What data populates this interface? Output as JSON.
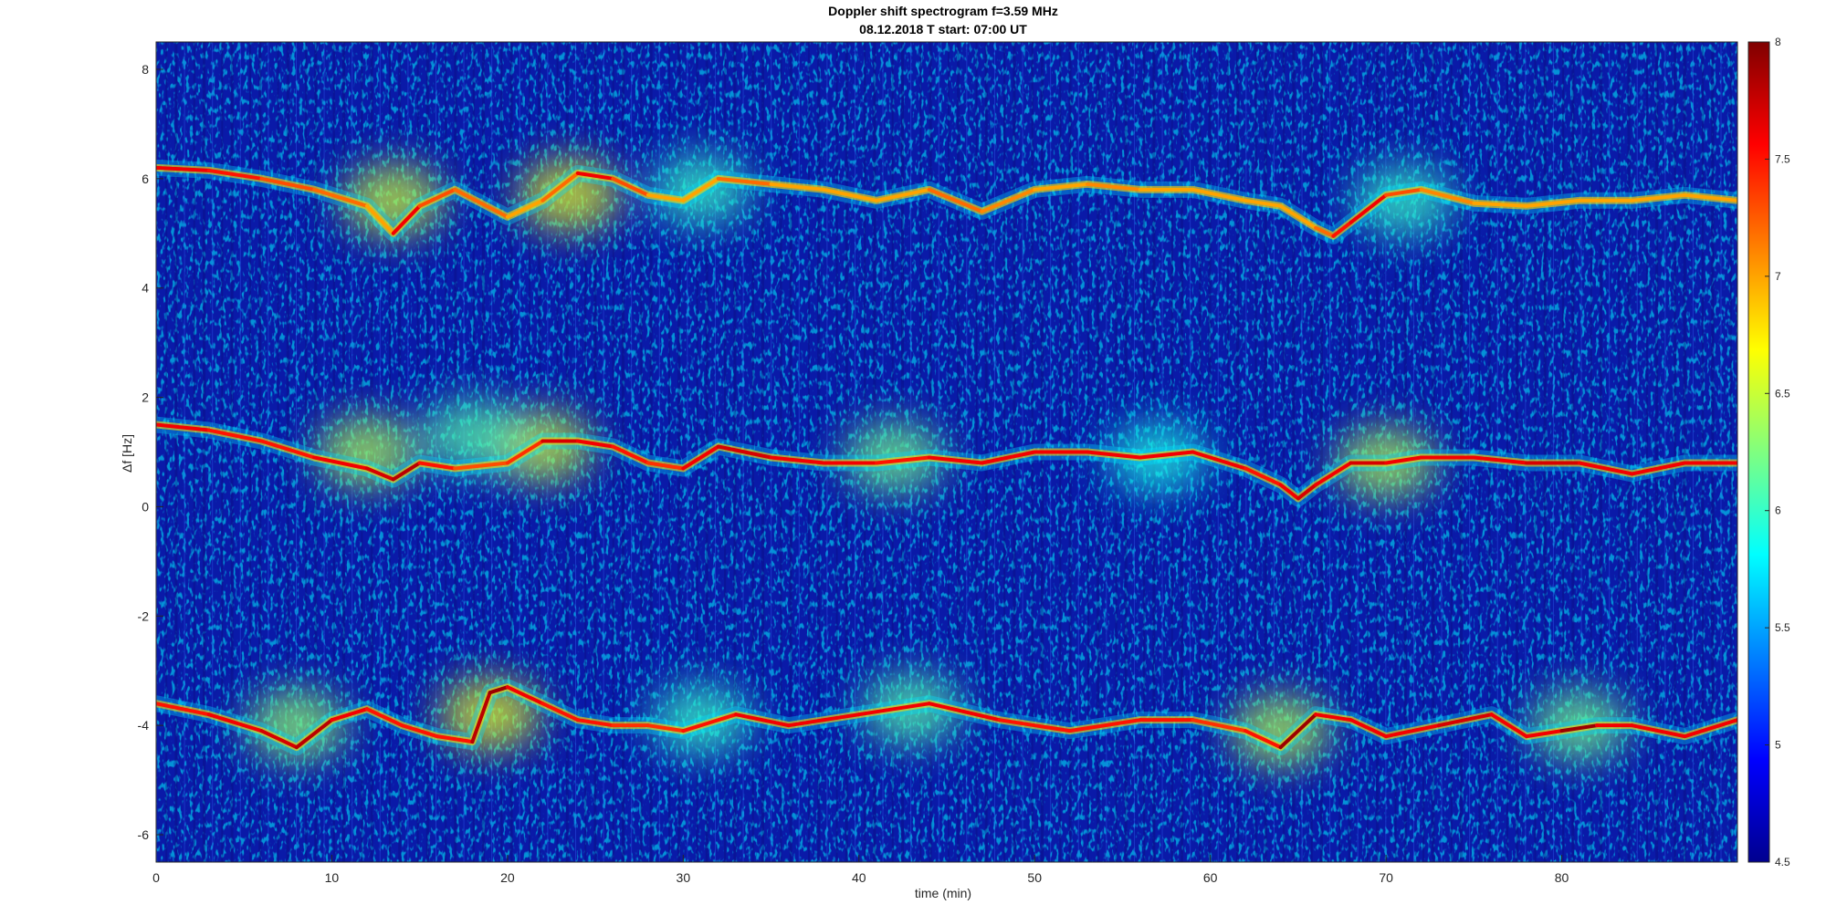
{
  "chart_data": {
    "type": "heatmap",
    "title": "Doppler shift spectrogram f=3.59 MHz",
    "subtitle": "08.12.2018    T start: 07:00 UT",
    "xlabel": "time (min)",
    "ylabel": "Δf [Hz]",
    "xlim": [
      0,
      90
    ],
    "ylim": [
      -6.5,
      8.5
    ],
    "x_ticks": [
      0,
      10,
      20,
      30,
      40,
      50,
      60,
      70,
      80
    ],
    "y_ticks": [
      -6,
      -4,
      -2,
      0,
      2,
      4,
      6,
      8
    ],
    "colorbar": {
      "range": [
        4.5,
        8
      ],
      "ticks": [
        4.5,
        5,
        5.5,
        6,
        6.5,
        7,
        7.5,
        8
      ],
      "colormap": "jet"
    },
    "traces": [
      {
        "x": [
          0,
          3,
          6,
          9,
          12,
          13.5,
          15,
          17,
          20,
          22,
          24,
          26,
          28,
          30,
          32,
          35,
          38,
          41,
          44,
          47,
          50,
          53,
          56,
          59,
          62,
          64,
          66,
          67,
          68,
          70,
          72,
          75,
          78,
          81,
          84,
          87,
          90
        ],
        "y": [
          6.2,
          6.15,
          6.0,
          5.8,
          5.5,
          5.0,
          5.5,
          5.8,
          5.3,
          5.6,
          6.1,
          6.0,
          5.7,
          5.6,
          6.0,
          5.9,
          5.8,
          5.6,
          5.8,
          5.4,
          5.8,
          5.9,
          5.8,
          5.8,
          5.6,
          5.5,
          5.1,
          4.95,
          5.2,
          5.7,
          5.8,
          5.55,
          5.5,
          5.6,
          5.6,
          5.7,
          5.6
        ],
        "intensity": [
          7.6,
          7.5,
          7.3,
          7.2,
          7.0,
          7.6,
          7.3,
          7.2,
          7.0,
          7.2,
          7.6,
          7.3,
          7.0,
          7.0,
          7.2,
          7.0,
          7.0,
          7.0,
          7.2,
          7.1,
          7.0,
          7.1,
          7.0,
          7.0,
          7.0,
          7.0,
          7.2,
          7.5,
          7.6,
          7.3,
          7.1,
          7.0,
          7.0,
          7.0,
          7.0,
          7.0,
          7.0
        ]
      },
      {
        "x": [
          0,
          3,
          6,
          9,
          12,
          13.5,
          15,
          17,
          20,
          22,
          24,
          26,
          28,
          30,
          32,
          35,
          38,
          41,
          44,
          47,
          50,
          53,
          56,
          59,
          62,
          64,
          65,
          66,
          68,
          70,
          72,
          75,
          78,
          81,
          84,
          87,
          90
        ],
        "y": [
          1.5,
          1.4,
          1.2,
          0.9,
          0.7,
          0.5,
          0.8,
          0.7,
          0.8,
          1.2,
          1.2,
          1.1,
          0.8,
          0.7,
          1.1,
          0.9,
          0.8,
          0.8,
          0.9,
          0.8,
          1.0,
          1.0,
          0.9,
          1.0,
          0.7,
          0.4,
          0.15,
          0.4,
          0.8,
          0.8,
          0.9,
          0.9,
          0.8,
          0.8,
          0.6,
          0.8,
          0.8
        ],
        "intensity": [
          7.6,
          7.5,
          7.5,
          7.6,
          7.7,
          7.8,
          7.5,
          7.3,
          7.4,
          7.7,
          7.6,
          7.5,
          7.4,
          7.6,
          7.7,
          7.6,
          7.6,
          7.5,
          7.6,
          7.6,
          7.6,
          7.6,
          7.6,
          7.6,
          7.5,
          7.6,
          7.7,
          7.6,
          7.7,
          7.6,
          7.6,
          7.6,
          7.7,
          7.6,
          7.6,
          7.6,
          7.6
        ]
      },
      {
        "x": [
          0,
          3,
          6,
          8,
          10,
          12,
          14,
          16,
          18,
          19,
          20,
          22,
          24,
          26,
          28,
          30,
          33,
          36,
          40,
          44,
          48,
          52,
          56,
          59,
          62,
          64,
          66,
          68,
          70,
          73,
          76,
          78,
          80,
          82,
          84,
          87,
          90
        ],
        "y": [
          -3.6,
          -3.8,
          -4.1,
          -4.4,
          -3.9,
          -3.7,
          -4.0,
          -4.2,
          -4.3,
          -3.4,
          -3.3,
          -3.6,
          -3.9,
          -4.0,
          -4.0,
          -4.1,
          -3.8,
          -4.0,
          -3.8,
          -3.6,
          -3.9,
          -4.1,
          -3.9,
          -3.9,
          -4.1,
          -4.4,
          -3.8,
          -3.9,
          -4.2,
          -4.0,
          -3.8,
          -4.2,
          -4.1,
          -4.0,
          -4.0,
          -4.2,
          -3.9
        ],
        "intensity": [
          7.5,
          7.6,
          7.7,
          7.8,
          7.6,
          7.5,
          7.5,
          7.5,
          7.8,
          7.9,
          7.6,
          7.5,
          7.5,
          7.4,
          7.4,
          7.5,
          7.6,
          7.6,
          7.6,
          7.6,
          7.5,
          7.5,
          7.5,
          7.4,
          7.5,
          7.9,
          7.6,
          7.6,
          7.6,
          7.7,
          7.6,
          7.6,
          7.9,
          7.6,
          7.6,
          7.6,
          7.6
        ]
      }
    ],
    "clusters": [
      {
        "x": 13.5,
        "y": 5.6,
        "value": 6.5
      },
      {
        "x": 23.5,
        "y": 5.7,
        "value": 6.6
      },
      {
        "x": 31,
        "y": 5.8,
        "value": 6.0
      },
      {
        "x": 71,
        "y": 5.6,
        "value": 6.0
      },
      {
        "x": 12,
        "y": 1.0,
        "value": 6.4
      },
      {
        "x": 22,
        "y": 1.1,
        "value": 6.5
      },
      {
        "x": 18,
        "y": 1.3,
        "value": 6.1
      },
      {
        "x": 42,
        "y": 0.9,
        "value": 6.2
      },
      {
        "x": 70,
        "y": 0.8,
        "value": 6.4
      },
      {
        "x": 57,
        "y": 0.9,
        "value": 5.9
      },
      {
        "x": 8,
        "y": -4.0,
        "value": 6.3
      },
      {
        "x": 19,
        "y": -3.8,
        "value": 6.6
      },
      {
        "x": 31,
        "y": -3.9,
        "value": 6.0
      },
      {
        "x": 43,
        "y": -3.7,
        "value": 6.1
      },
      {
        "x": 64,
        "y": -4.1,
        "value": 6.4
      },
      {
        "x": 81,
        "y": -4.0,
        "value": 6.2
      }
    ]
  }
}
